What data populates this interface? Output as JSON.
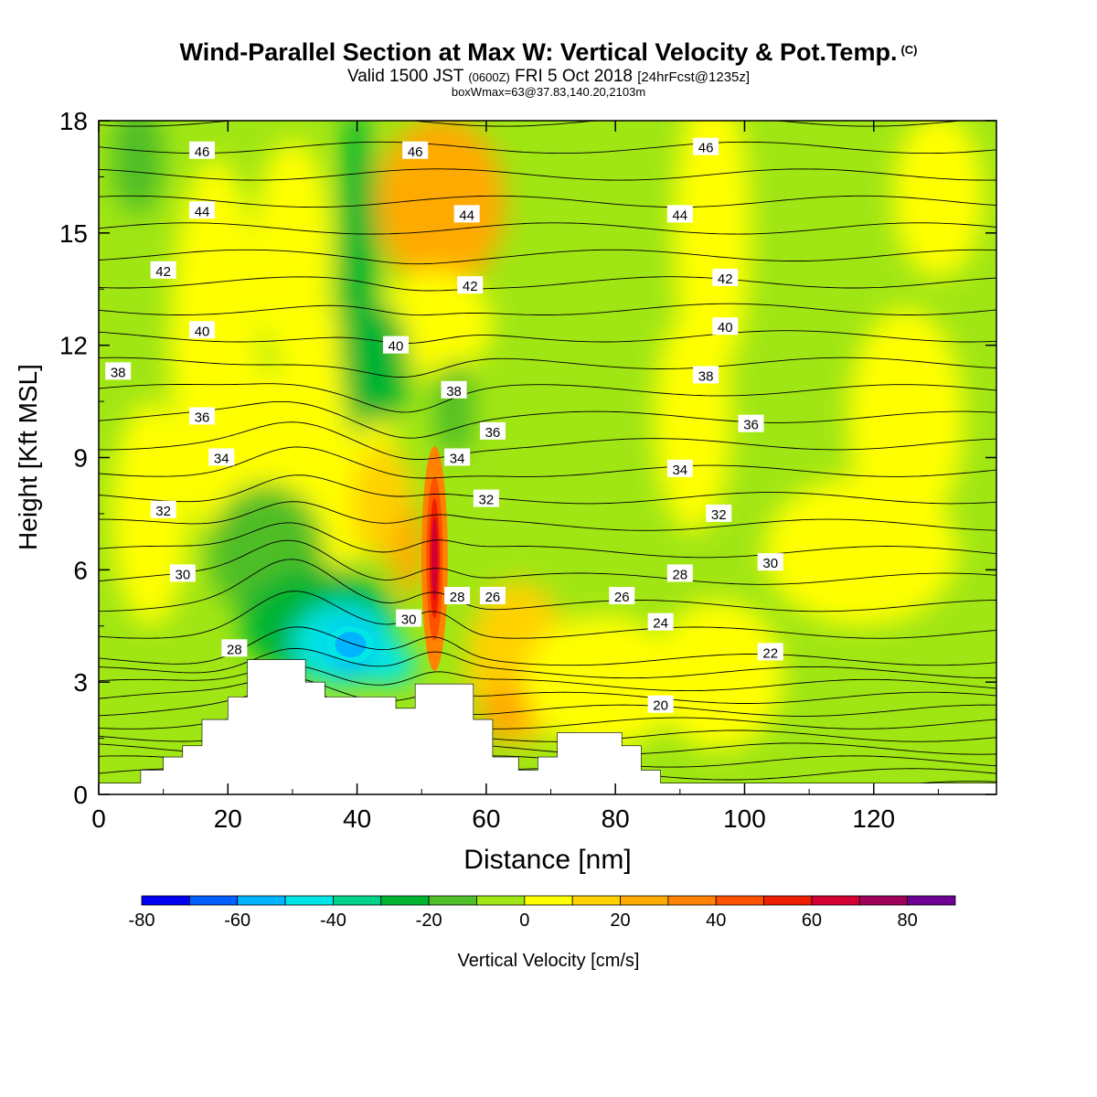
{
  "header": {
    "title": "Wind-Parallel Section at Max W: Vertical Velocity & Pot.Temp.",
    "copyright": "(C)",
    "valid_prefix": "Valid 1500 JST",
    "valid_utc": "(0600Z)",
    "valid_date": "FRI 5 Oct 2018",
    "forecast_info": "[24hrFcst@1235z]",
    "box_info": "boxWmax=63@37.83,140.20,2103m"
  },
  "chart_data": {
    "type": "heatmap",
    "title": "Wind-Parallel Section at Max W: Vertical Velocity & Pot.Temp.",
    "xlabel": "Distance [nm]",
    "ylabel": "Height [Kft MSL]",
    "xlim": [
      0,
      139
    ],
    "ylim": [
      0,
      18
    ],
    "x_ticks": [
      0,
      20,
      40,
      60,
      80,
      100,
      120
    ],
    "y_ticks": [
      0,
      3,
      6,
      9,
      12,
      15,
      18
    ],
    "colorbar": {
      "label": "Vertical Velocity [cm/s]",
      "ticks": [
        -80,
        -60,
        -40,
        -20,
        0,
        20,
        40,
        60,
        80
      ],
      "levels": [
        -80,
        -70,
        -60,
        -50,
        -40,
        -30,
        -20,
        -10,
        0,
        10,
        20,
        30,
        40,
        50,
        60,
        70,
        80,
        90
      ],
      "colors": [
        "#0000f0",
        "#0060ff",
        "#00b4ff",
        "#00e6e6",
        "#00d28c",
        "#00b432",
        "#50be28",
        "#a0e614",
        "#ffff00",
        "#ffd200",
        "#ffaa00",
        "#ff8200",
        "#ff5000",
        "#f01e00",
        "#d20032",
        "#a0005a",
        "#6e0096"
      ]
    },
    "velocity_features": [
      {
        "name": "updraft-max",
        "x": 52,
        "y": 6.3,
        "w_cm_s": 63
      },
      {
        "name": "downdraft-core",
        "x": 39,
        "y": 4.0,
        "w_cm_s": -55
      },
      {
        "name": "upper-descent-band",
        "x": 45,
        "y": 11.5,
        "w_cm_s": -22
      },
      {
        "name": "upper-ascent-band",
        "x": 52,
        "y": 15.5,
        "w_cm_s": 22
      }
    ],
    "terrain": {
      "x": [
        0,
        6.5,
        6.5,
        10,
        10,
        13,
        13,
        16,
        16,
        20,
        20,
        23,
        23,
        32,
        32,
        35,
        35,
        46,
        46,
        49,
        49,
        58,
        58,
        61,
        61,
        65,
        65,
        68,
        68,
        71,
        71,
        81,
        81,
        84,
        84,
        87,
        87,
        89,
        89,
        139
      ],
      "height_kft": [
        0.3,
        0.3,
        0.65,
        0.65,
        1.0,
        1.0,
        1.3,
        1.3,
        2.0,
        2.0,
        2.6,
        2.6,
        3.6,
        3.6,
        3.0,
        3.0,
        2.6,
        2.6,
        2.3,
        2.3,
        2.95,
        2.95,
        2.0,
        2.0,
        1.0,
        1.0,
        0.65,
        0.65,
        1.0,
        1.0,
        1.65,
        1.65,
        1.3,
        1.3,
        0.65,
        0.65,
        0.3,
        0.3,
        0.3,
        0.3
      ]
    },
    "isentrope_labels": [
      {
        "text": "46",
        "x": 16,
        "y": 17.2
      },
      {
        "text": "46",
        "x": 49,
        "y": 17.2
      },
      {
        "text": "46",
        "x": 94,
        "y": 17.3
      },
      {
        "text": "44",
        "x": 16,
        "y": 15.6
      },
      {
        "text": "44",
        "x": 57,
        "y": 15.5
      },
      {
        "text": "44",
        "x": 90,
        "y": 15.5
      },
      {
        "text": "42",
        "x": 10,
        "y": 14.0
      },
      {
        "text": "42",
        "x": 57.5,
        "y": 13.6
      },
      {
        "text": "42",
        "x": 97,
        "y": 13.8
      },
      {
        "text": "40",
        "x": 16,
        "y": 12.4
      },
      {
        "text": "40",
        "x": 46,
        "y": 12.0
      },
      {
        "text": "40",
        "x": 97,
        "y": 12.5
      },
      {
        "text": "38",
        "x": 3,
        "y": 11.3
      },
      {
        "text": "38",
        "x": 55,
        "y": 10.8
      },
      {
        "text": "38",
        "x": 94,
        "y": 11.2
      },
      {
        "text": "36",
        "x": 16,
        "y": 10.1
      },
      {
        "text": "36",
        "x": 61,
        "y": 9.7
      },
      {
        "text": "36",
        "x": 101,
        "y": 9.9
      },
      {
        "text": "34",
        "x": 19,
        "y": 9.0
      },
      {
        "text": "34",
        "x": 55.5,
        "y": 9.0
      },
      {
        "text": "34",
        "x": 90,
        "y": 8.7
      },
      {
        "text": "32",
        "x": 10,
        "y": 7.6
      },
      {
        "text": "32",
        "x": 60,
        "y": 7.9
      },
      {
        "text": "32",
        "x": 96,
        "y": 7.5
      },
      {
        "text": "30",
        "x": 13,
        "y": 5.9
      },
      {
        "text": "30",
        "x": 48,
        "y": 4.7
      },
      {
        "text": "30",
        "x": 104,
        "y": 6.2
      },
      {
        "text": "28",
        "x": 21,
        "y": 3.9
      },
      {
        "text": "28",
        "x": 55.5,
        "y": 5.3
      },
      {
        "text": "28",
        "x": 90,
        "y": 5.9
      },
      {
        "text": "26",
        "x": 61,
        "y": 5.3
      },
      {
        "text": "26",
        "x": 81,
        "y": 5.3
      },
      {
        "text": "24",
        "x": 87,
        "y": 4.6
      },
      {
        "text": "22",
        "x": 104,
        "y": 3.8
      },
      {
        "text": "20",
        "x": 87,
        "y": 2.4
      }
    ]
  }
}
